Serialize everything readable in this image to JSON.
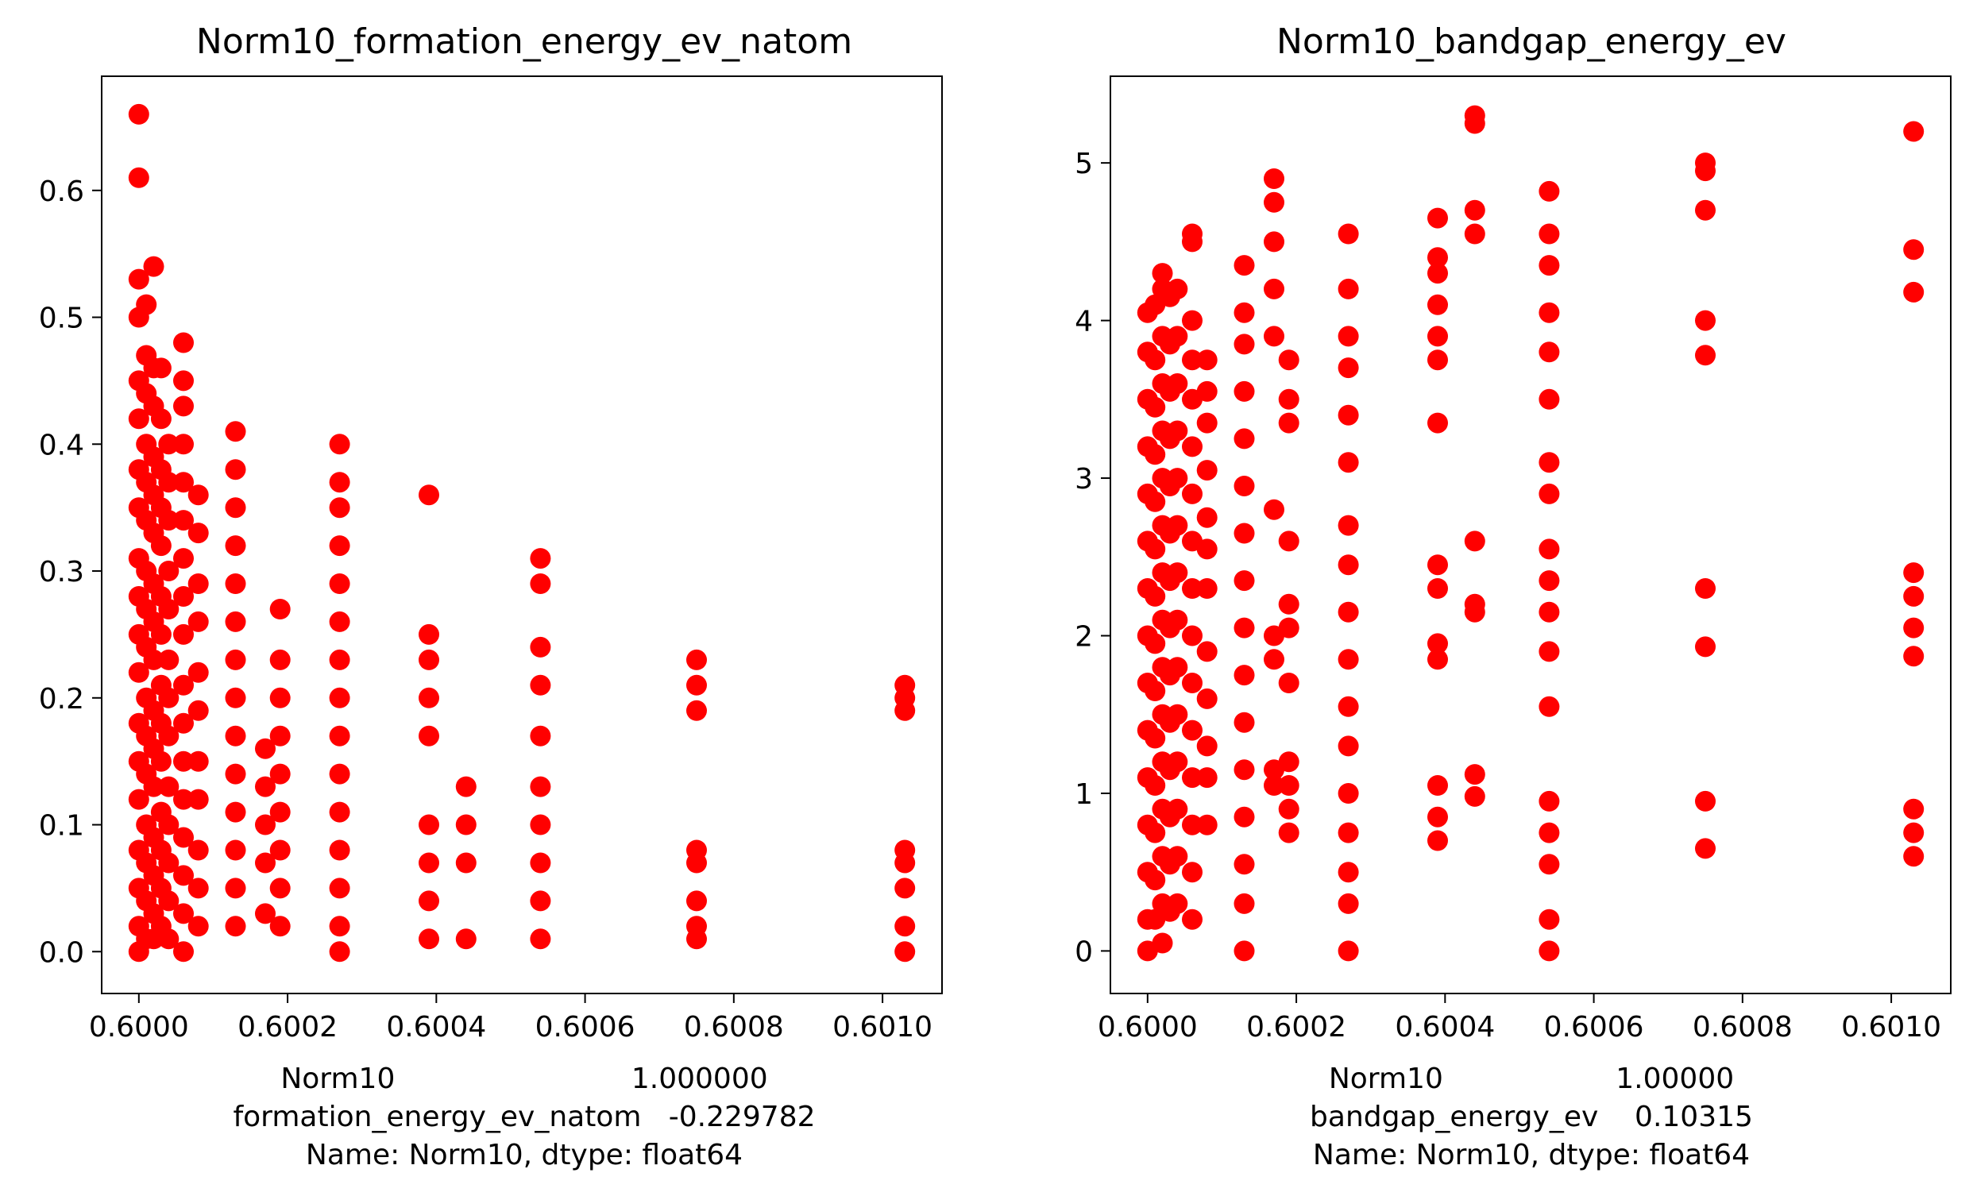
{
  "marker_color": "#ff0000",
  "chart_data": [
    {
      "type": "scatter",
      "title": "Norm10_formation_energy_ev_natom",
      "xlabel_lines": [
        "Norm10                          1.000000",
        "formation_energy_ev_natom   -0.229782",
        "Name: Norm10, dtype: float64"
      ],
      "ylabel": "",
      "xlim": [
        0.59995,
        0.60108
      ],
      "ylim": [
        -0.033,
        0.69
      ],
      "xticks": [
        0.6,
        0.6002,
        0.6004,
        0.6006,
        0.6008,
        0.601
      ],
      "xtick_labels": [
        "0.6000",
        "0.6002",
        "0.6004",
        "0.6006",
        "0.6008",
        "0.6010"
      ],
      "yticks": [
        0.0,
        0.1,
        0.2,
        0.3,
        0.4,
        0.5,
        0.6
      ],
      "ytick_labels": [
        "0.0",
        "0.1",
        "0.2",
        "0.3",
        "0.4",
        "0.5",
        "0.6"
      ],
      "grid": false,
      "columns": [
        {
          "x": 0.6,
          "y": [
            0.0,
            0.02,
            0.05,
            0.08,
            0.12,
            0.15,
            0.18,
            0.22,
            0.25,
            0.28,
            0.31,
            0.35,
            0.38,
            0.42,
            0.45,
            0.5,
            0.53,
            0.61,
            0.66
          ]
        },
        {
          "x": 0.60001,
          "y": [
            0.01,
            0.04,
            0.07,
            0.1,
            0.14,
            0.17,
            0.2,
            0.24,
            0.27,
            0.3,
            0.34,
            0.37,
            0.4,
            0.44,
            0.47,
            0.51
          ]
        },
        {
          "x": 0.60002,
          "y": [
            0.01,
            0.03,
            0.06,
            0.09,
            0.13,
            0.16,
            0.19,
            0.23,
            0.26,
            0.29,
            0.33,
            0.36,
            0.39,
            0.43,
            0.46,
            0.54
          ]
        },
        {
          "x": 0.60003,
          "y": [
            0.02,
            0.05,
            0.08,
            0.11,
            0.15,
            0.18,
            0.21,
            0.25,
            0.28,
            0.32,
            0.35,
            0.38,
            0.42,
            0.46
          ]
        },
        {
          "x": 0.60004,
          "y": [
            0.01,
            0.04,
            0.07,
            0.1,
            0.13,
            0.17,
            0.2,
            0.23,
            0.27,
            0.3,
            0.34,
            0.37,
            0.4
          ]
        },
        {
          "x": 0.60006,
          "y": [
            0.0,
            0.03,
            0.06,
            0.09,
            0.12,
            0.15,
            0.18,
            0.21,
            0.25,
            0.28,
            0.31,
            0.34,
            0.37,
            0.4,
            0.43,
            0.45,
            0.48
          ]
        },
        {
          "x": 0.60008,
          "y": [
            0.02,
            0.05,
            0.08,
            0.12,
            0.15,
            0.19,
            0.22,
            0.26,
            0.29,
            0.33,
            0.36
          ]
        },
        {
          "x": 0.60013,
          "y": [
            0.02,
            0.05,
            0.08,
            0.11,
            0.14,
            0.17,
            0.2,
            0.23,
            0.26,
            0.29,
            0.32,
            0.35,
            0.38,
            0.41
          ]
        },
        {
          "x": 0.60017,
          "y": [
            0.03,
            0.07,
            0.1,
            0.13,
            0.16
          ]
        },
        {
          "x": 0.60019,
          "y": [
            0.02,
            0.05,
            0.08,
            0.11,
            0.14,
            0.17,
            0.2,
            0.23,
            0.27
          ]
        },
        {
          "x": 0.60027,
          "y": [
            0.0,
            0.02,
            0.05,
            0.08,
            0.11,
            0.14,
            0.17,
            0.2,
            0.23,
            0.26,
            0.29,
            0.32,
            0.35,
            0.37,
            0.4
          ]
        },
        {
          "x": 0.60039,
          "y": [
            0.01,
            0.04,
            0.07,
            0.1,
            0.17,
            0.2,
            0.23,
            0.25,
            0.36
          ]
        },
        {
          "x": 0.60044,
          "y": [
            0.01,
            0.07,
            0.1,
            0.13
          ]
        },
        {
          "x": 0.60054,
          "y": [
            0.01,
            0.04,
            0.07,
            0.1,
            0.13,
            0.17,
            0.21,
            0.24,
            0.29,
            0.31
          ]
        },
        {
          "x": 0.60075,
          "y": [
            0.01,
            0.02,
            0.04,
            0.07,
            0.08,
            0.19,
            0.21,
            0.23
          ]
        },
        {
          "x": 0.60103,
          "y": [
            0.0,
            0.02,
            0.05,
            0.07,
            0.08,
            0.19,
            0.2,
            0.21
          ]
        }
      ]
    },
    {
      "type": "scatter",
      "title": "Norm10_bandgap_energy_ev",
      "xlabel_lines": [
        "Norm10                   1.00000",
        "bandgap_energy_ev    0.10315",
        "Name: Norm10, dtype: float64"
      ],
      "ylabel": "",
      "xlim": [
        0.59995,
        0.60108
      ],
      "ylim": [
        -0.27,
        5.55
      ],
      "xticks": [
        0.6,
        0.6002,
        0.6004,
        0.6006,
        0.6008,
        0.601
      ],
      "xtick_labels": [
        "0.6000",
        "0.6002",
        "0.6004",
        "0.6006",
        "0.6008",
        "0.6010"
      ],
      "yticks": [
        0,
        1,
        2,
        3,
        4,
        5
      ],
      "ytick_labels": [
        "0",
        "1",
        "2",
        "3",
        "4",
        "5"
      ],
      "grid": false,
      "columns": [
        {
          "x": 0.6,
          "y": [
            0.0,
            0.2,
            0.5,
            0.8,
            1.1,
            1.4,
            1.7,
            2.0,
            2.3,
            2.6,
            2.9,
            3.2,
            3.5,
            3.8,
            4.05
          ]
        },
        {
          "x": 0.60001,
          "y": [
            0.2,
            0.45,
            0.75,
            1.05,
            1.35,
            1.65,
            1.95,
            2.25,
            2.55,
            2.85,
            3.15,
            3.45,
            3.75,
            4.1
          ]
        },
        {
          "x": 0.60002,
          "y": [
            0.05,
            0.3,
            0.6,
            0.9,
            1.2,
            1.5,
            1.8,
            2.1,
            2.4,
            2.7,
            3.0,
            3.3,
            3.6,
            3.9,
            4.2,
            4.3
          ]
        },
        {
          "x": 0.60003,
          "y": [
            0.25,
            0.55,
            0.85,
            1.15,
            1.45,
            1.75,
            2.05,
            2.35,
            2.65,
            2.95,
            3.25,
            3.55,
            3.85,
            4.15
          ]
        },
        {
          "x": 0.60004,
          "y": [
            0.3,
            0.6,
            0.9,
            1.2,
            1.5,
            1.8,
            2.1,
            2.4,
            2.7,
            3.0,
            3.3,
            3.6,
            3.9,
            4.2
          ]
        },
        {
          "x": 0.60006,
          "y": [
            0.2,
            0.5,
            0.8,
            1.1,
            1.4,
            1.7,
            2.0,
            2.3,
            2.6,
            2.9,
            3.2,
            3.5,
            3.75,
            4.0,
            4.5,
            4.55
          ]
        },
        {
          "x": 0.60008,
          "y": [
            0.8,
            1.1,
            1.3,
            1.6,
            1.9,
            2.3,
            2.55,
            2.75,
            3.05,
            3.35,
            3.55,
            3.75
          ]
        },
        {
          "x": 0.60013,
          "y": [
            0.0,
            0.3,
            0.55,
            0.85,
            1.15,
            1.45,
            1.75,
            2.05,
            2.35,
            2.65,
            2.95,
            3.25,
            3.55,
            3.85,
            4.05,
            4.35
          ]
        },
        {
          "x": 0.60017,
          "y": [
            1.05,
            1.15,
            1.85,
            2.0,
            2.8,
            3.9,
            4.2,
            4.5,
            4.75,
            4.9
          ]
        },
        {
          "x": 0.60019,
          "y": [
            0.75,
            0.9,
            1.05,
            1.2,
            1.7,
            2.05,
            2.2,
            2.6,
            3.35,
            3.5,
            3.75
          ]
        },
        {
          "x": 0.60027,
          "y": [
            0.0,
            0.3,
            0.5,
            0.75,
            1.0,
            1.3,
            1.55,
            1.85,
            2.15,
            2.45,
            2.7,
            3.1,
            3.4,
            3.7,
            3.9,
            4.2,
            4.55
          ]
        },
        {
          "x": 0.60039,
          "y": [
            0.7,
            0.85,
            1.05,
            1.85,
            1.95,
            2.3,
            2.45,
            3.35,
            3.75,
            3.9,
            4.1,
            4.3,
            4.4,
            4.65
          ]
        },
        {
          "x": 0.60044,
          "y": [
            0.98,
            1.12,
            2.15,
            2.2,
            2.6,
            4.55,
            4.7,
            5.25,
            5.3
          ]
        },
        {
          "x": 0.60054,
          "y": [
            0.0,
            0.2,
            0.55,
            0.75,
            0.95,
            1.55,
            1.9,
            2.15,
            2.35,
            2.55,
            2.9,
            3.1,
            3.5,
            3.8,
            4.05,
            4.35,
            4.55,
            4.82
          ]
        },
        {
          "x": 0.60075,
          "y": [
            0.65,
            0.95,
            1.93,
            2.3,
            3.78,
            4.0,
            4.7,
            4.95,
            5.0
          ]
        },
        {
          "x": 0.60103,
          "y": [
            0.6,
            0.75,
            0.9,
            1.87,
            2.05,
            2.25,
            2.4,
            4.18,
            4.45,
            5.2
          ]
        }
      ]
    }
  ]
}
